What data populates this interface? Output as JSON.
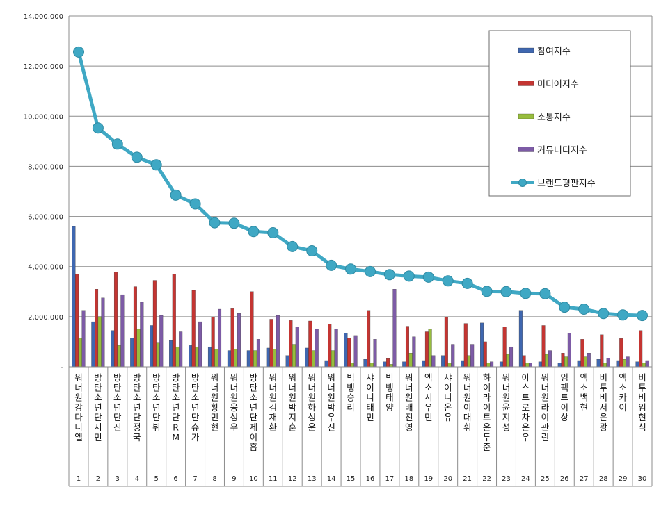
{
  "chart_data": {
    "type": "bar",
    "title": "",
    "xlabel": "",
    "ylabel": "",
    "ylim": [
      0,
      14000000
    ],
    "yticks": [
      "-",
      "2,000,000",
      "4,000,000",
      "6,000,000",
      "8,000,000",
      "10,000,000",
      "12,000,000",
      "14,000,000"
    ],
    "grid": true,
    "legend_position": "top-right",
    "ranks": [
      "1",
      "2",
      "3",
      "4",
      "5",
      "6",
      "7",
      "8",
      "9",
      "10",
      "11",
      "12",
      "13",
      "14",
      "15",
      "16",
      "17",
      "18",
      "19",
      "20",
      "21",
      "22",
      "23",
      "24",
      "25",
      "26",
      "27",
      "28",
      "29",
      "30"
    ],
    "categories": [
      "워너원강다니엘",
      "방탄소년단지민",
      "방탄소년단진",
      "방탄소년단정국",
      "방탄소년단뷔",
      "방탄소년단RM",
      "방탄소년단슈가",
      "워너원황민현",
      "워너원옹성우",
      "방탄소년단제이홉",
      "워너원김재환",
      "워너원박지훈",
      "워너원하성운",
      "워너원박우진",
      "빅뱅승리",
      "샤이니태민",
      "빅뱅태양",
      "워너원배진영",
      "엑소시우민",
      "샤이니온유",
      "워너원이대휘",
      "하이라이트윤두준",
      "워너원윤지성",
      "아스트로차은우",
      "워너원라이관린",
      "임팩트이상",
      "엑소백현",
      "비투비서은광",
      "엑소카이",
      "비투비임현식"
    ],
    "series": [
      {
        "name": "참여지수",
        "kind": "bar",
        "color": "#3f67b0",
        "values": [
          5600000,
          1800000,
          1450000,
          1150000,
          1650000,
          1050000,
          850000,
          800000,
          650000,
          650000,
          750000,
          450000,
          750000,
          250000,
          1350000,
          300000,
          200000,
          200000,
          250000,
          450000,
          250000,
          1750000,
          200000,
          2250000,
          200000,
          150000,
          250000,
          300000,
          250000,
          200000
        ]
      },
      {
        "name": "미디어지수",
        "kind": "bar",
        "color": "#c43532",
        "values": [
          3700000,
          3100000,
          3780000,
          3200000,
          3450000,
          3700000,
          3050000,
          1980000,
          2320000,
          3000000,
          1900000,
          1850000,
          1830000,
          1700000,
          1150000,
          2250000,
          330000,
          1620000,
          1400000,
          1980000,
          1730000,
          1000000,
          1600000,
          450000,
          1650000,
          550000,
          1100000,
          1280000,
          1130000,
          1450000
        ]
      },
      {
        "name": "소통지수",
        "kind": "bar",
        "color": "#97bd3d",
        "values": [
          1150000,
          2000000,
          850000,
          1500000,
          950000,
          800000,
          800000,
          700000,
          700000,
          650000,
          700000,
          900000,
          650000,
          650000,
          150000,
          150000,
          100000,
          550000,
          1500000,
          150000,
          450000,
          150000,
          500000,
          150000,
          500000,
          400000,
          400000,
          150000,
          300000,
          150000
        ]
      },
      {
        "name": "커뮤니티지수",
        "kind": "bar",
        "color": "#7d5ba6",
        "values": [
          2250000,
          2750000,
          2880000,
          2580000,
          2050000,
          1400000,
          1800000,
          2300000,
          2130000,
          1100000,
          2050000,
          1600000,
          1500000,
          1500000,
          1250000,
          1100000,
          3100000,
          1200000,
          450000,
          900000,
          900000,
          200000,
          800000,
          150000,
          650000,
          1350000,
          550000,
          350000,
          400000,
          250000
        ]
      },
      {
        "name": "브랜드평판지수",
        "kind": "line",
        "color": "#3fa8c4",
        "values": [
          12560000,
          9530000,
          8890000,
          8360000,
          8060000,
          6850000,
          6500000,
          5750000,
          5730000,
          5400000,
          5350000,
          4800000,
          4630000,
          4050000,
          3900000,
          3800000,
          3680000,
          3620000,
          3580000,
          3430000,
          3330000,
          3010000,
          3000000,
          2930000,
          2920000,
          2380000,
          2300000,
          2130000,
          2070000,
          2050000
        ]
      }
    ]
  }
}
